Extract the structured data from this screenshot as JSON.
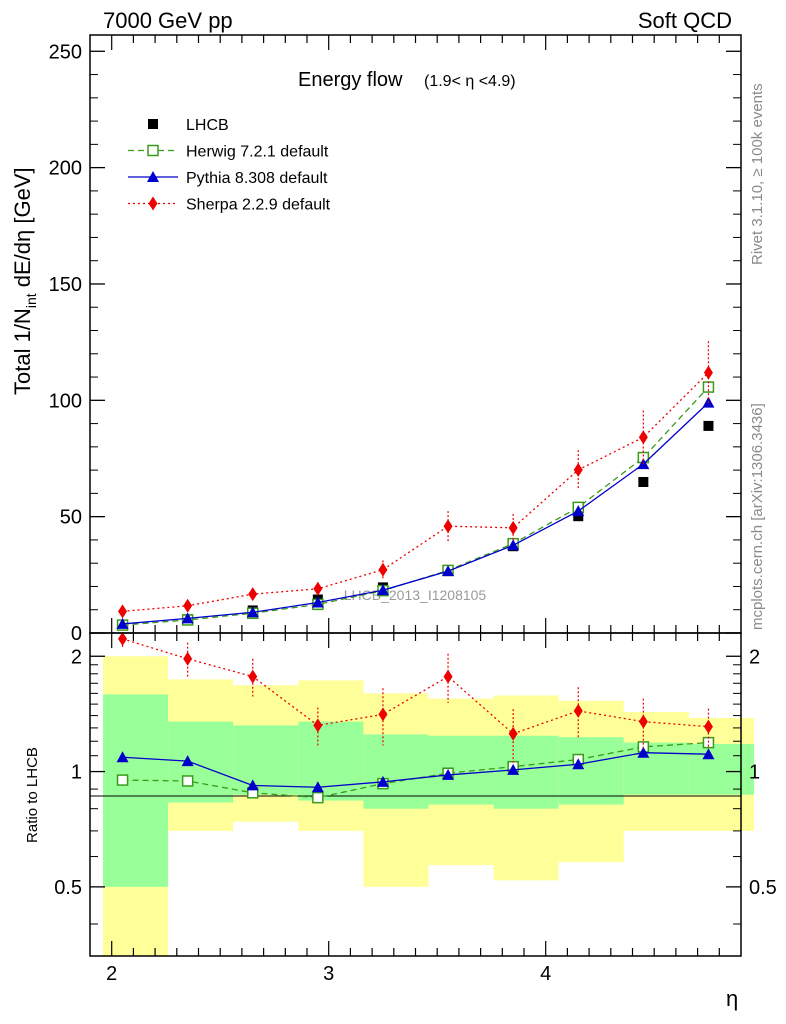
{
  "header": {
    "left": "7000 GeV pp",
    "right": "Soft QCD"
  },
  "side": {
    "rivet": "Rivet 3.1.10, ≥ 100k events",
    "mcplots": "mcplots.cern.ch [arXiv:1306.3436]"
  },
  "watermark": "LHCB_2013_I1208105",
  "colors": {
    "data": "#000000",
    "herwig": "#3a9a1a",
    "pythia": "#0000cc",
    "sherpa": "#ee0000",
    "band_inner": "#99ff99",
    "band_outer": "#ffff99"
  },
  "chart_data": [
    {
      "type": "line",
      "title": "Energy flow",
      "title_suffix": "(1.9< η <4.9)",
      "ylabel": "Total 1/N",
      "ylabel_sub": "int",
      "ylabel_rest": " dE/dη [GeV]",
      "xlim": [
        1.9,
        4.9
      ],
      "ylim": [
        0,
        257
      ],
      "yticks": [
        0,
        50,
        100,
        150,
        200,
        250
      ],
      "x": [
        2.05,
        2.35,
        2.65,
        2.95,
        3.25,
        3.55,
        3.85,
        4.15,
        4.45,
        4.75
      ],
      "series": [
        {
          "name": "LHCB",
          "key": "data",
          "values": [
            3.6,
            5.9,
            9.7,
            14.4,
            19.6,
            27.1,
            37.3,
            50.2,
            64.9,
            89.0
          ]
        },
        {
          "name": "Herwig 7.2.1 default",
          "key": "herwig",
          "values": [
            3.4,
            5.6,
            8.5,
            12.3,
            18.2,
            26.9,
            38.4,
            54.0,
            75.4,
            105.7
          ]
        },
        {
          "name": "Pythia 8.308 default",
          "key": "pythia",
          "values": [
            3.9,
            6.3,
            8.9,
            13.1,
            18.4,
            26.6,
            37.7,
            52.4,
            72.6,
            99.0
          ]
        },
        {
          "name": "Sherpa 2.2.9 default",
          "key": "sherpa",
          "values": [
            9.3,
            11.7,
            16.7,
            19.0,
            27.2,
            45.9,
            45.2,
            70.1,
            84.1,
            111.9
          ],
          "err_up": [
            1.0,
            1.2,
            2.4,
            2.7,
            4.0,
            6.5,
            6.0,
            8.5,
            11.5,
            13.5
          ],
          "err_down": [
            1.0,
            1.2,
            2.4,
            2.7,
            4.0,
            6.5,
            6.0,
            8.5,
            11.5,
            13.5
          ]
        }
      ]
    },
    {
      "type": "line",
      "ylabel": "Ratio to LHCB",
      "xlabel": "η",
      "xlim": [
        1.9,
        4.9
      ],
      "ylim": [
        0.33,
        2.3
      ],
      "log_y": true,
      "yticks": [
        0.5,
        1,
        2
      ],
      "ytick_labels": [
        "0.5",
        "1",
        "2"
      ],
      "xticks": [
        2,
        3,
        4
      ],
      "x": [
        2.05,
        2.35,
        2.65,
        2.95,
        3.25,
        3.55,
        3.85,
        4.15,
        4.45,
        4.75
      ],
      "bands": {
        "edges": [
          1.9,
          2.2,
          2.5,
          2.8,
          3.1,
          3.4,
          3.7,
          4.0,
          4.3,
          4.6,
          4.9
        ],
        "outer_low": [
          0.2,
          0.7,
          0.74,
          0.7,
          0.5,
          0.57,
          0.52,
          0.58,
          0.7,
          0.7
        ],
        "outer_high": [
          2.0,
          1.74,
          1.68,
          1.73,
          1.6,
          1.55,
          1.58,
          1.53,
          1.43,
          1.38
        ],
        "inner_low": [
          0.5,
          0.83,
          0.87,
          0.84,
          0.8,
          0.82,
          0.8,
          0.82,
          0.87,
          0.87
        ],
        "inner_high": [
          1.59,
          1.35,
          1.32,
          1.35,
          1.25,
          1.24,
          1.24,
          1.23,
          1.19,
          1.18
        ]
      },
      "series": [
        {
          "name": "Herwig 7.2.1 default",
          "key": "herwig",
          "values": [
            0.95,
            0.945,
            0.88,
            0.855,
            0.93,
            0.99,
            1.03,
            1.075,
            1.16,
            1.19
          ]
        },
        {
          "name": "Pythia 8.308 default",
          "key": "pythia",
          "values": [
            1.09,
            1.065,
            0.92,
            0.91,
            0.94,
            0.98,
            1.01,
            1.045,
            1.12,
            1.11
          ]
        },
        {
          "name": "Sherpa 2.2.9 default",
          "key": "sherpa",
          "values": [
            2.22,
            1.97,
            1.77,
            1.32,
            1.41,
            1.77,
            1.255,
            1.44,
            1.35,
            1.31
          ],
          "err_up": [
            0.12,
            0.2,
            0.2,
            0.15,
            0.24,
            0.26,
            0.2,
            0.22,
            0.2,
            0.15
          ],
          "err_down": [
            0.12,
            0.2,
            0.2,
            0.15,
            0.24,
            0.26,
            0.2,
            0.22,
            0.2,
            0.15
          ],
          "err_up_pythia": [
            0.03,
            0.03
          ],
          "err_up_pythia_note": ""
        }
      ]
    }
  ]
}
